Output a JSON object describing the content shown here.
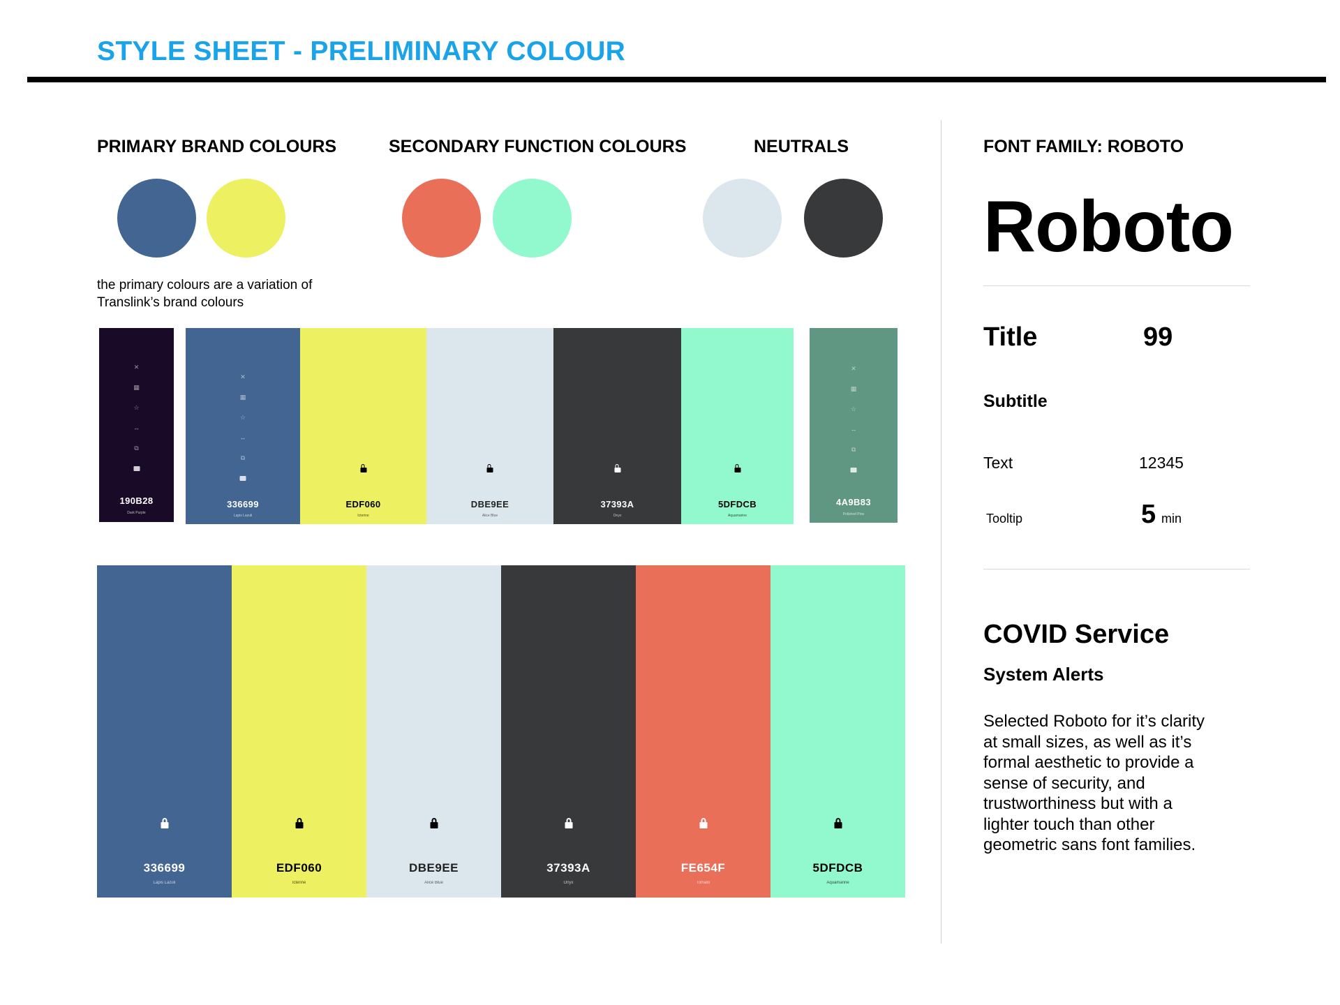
{
  "header": {
    "title": "STYLE SHEET - PRELIMINARY COLOUR"
  },
  "sections": {
    "primary_heading": "PRIMARY BRAND COLOURS",
    "secondary_heading": "SECONDARY FUNCTION COLOURS",
    "neutrals_heading": "NEUTRALS",
    "primary_note": "the primary colours are a variation of Translink’s brand colours"
  },
  "circles": {
    "primary": [
      "#426592",
      "#EDF060"
    ],
    "secondary": [
      "#E96F59",
      "#92F9CF"
    ],
    "neutrals": [
      "#DCE6ED",
      "#37393A"
    ]
  },
  "swatches": [
    {
      "hex": "190B28",
      "name": "Dark Purple",
      "color": "#190B28",
      "text_color": "#ffffff",
      "icons": [
        "close-icon",
        "grid-icon",
        "star-icon",
        "swap-icon",
        "copy-icon",
        "lock-icon"
      ]
    },
    {
      "hex": "336699",
      "name": "Lapis Lazuli",
      "color": "#426592",
      "text_color": "#ffffff",
      "icons": [
        "close-icon",
        "grid-icon",
        "star-icon",
        "swap-icon",
        "copy-icon",
        "lock-icon"
      ]
    },
    {
      "hex": "EDF060",
      "name": "Icterine",
      "color": "#EDF060",
      "text_color": "#000000"
    },
    {
      "hex": "DBE9EE",
      "name": "Alice Blue",
      "color": "#DCE6ED",
      "text_color": "#222222"
    },
    {
      "hex": "37393A",
      "name": "Onyx",
      "color": "#37393A",
      "text_color": "#ffffff"
    },
    {
      "hex": "5DFDCB",
      "name": "Aquamarine",
      "color": "#92F9CF",
      "text_color": "#000000"
    },
    {
      "hex": "4A9B83",
      "name": "Polished Pine",
      "color": "#5F9782",
      "text_color": "#ffffff",
      "icons": [
        "close-icon",
        "grid-icon",
        "star-icon",
        "swap-icon",
        "copy-icon",
        "lock-icon"
      ]
    }
  ],
  "bars": [
    {
      "hex": "336699",
      "name": "Lapis Lazuli",
      "color": "#426592",
      "text_color": "#ffffff"
    },
    {
      "hex": "EDF060",
      "name": "Icterine",
      "color": "#EDF060",
      "text_color": "#000000"
    },
    {
      "hex": "DBE9EE",
      "name": "Alice Blue",
      "color": "#DCE6ED",
      "text_color": "#222222"
    },
    {
      "hex": "37393A",
      "name": "Onyx",
      "color": "#37393A",
      "text_color": "#ffffff"
    },
    {
      "hex": "FE654F",
      "name": "Tomato",
      "color": "#E96F59",
      "text_color": "#ffffff"
    },
    {
      "hex": "5DFDCB",
      "name": "Aquamarine",
      "color": "#92F9CF",
      "text_color": "#000000"
    }
  ],
  "font_panel": {
    "heading": "FONT FAMILY: ROBOTO",
    "sample": "Roboto",
    "title_label": "Title",
    "title_value": "99",
    "subtitle_label": "Subtitle",
    "text_label": "Text",
    "text_value": "12345",
    "tooltip_label": "Tooltip",
    "tooltip_value": "5",
    "tooltip_unit": "min",
    "covid_title": "COVID Service",
    "alerts_title": "System Alerts",
    "body": "Selected Roboto for it’s clarity at small sizes, as well as it’s formal aesthetic to provide a sense of security, and trustworthiness but with a lighter touch than other geometric sans font families."
  }
}
